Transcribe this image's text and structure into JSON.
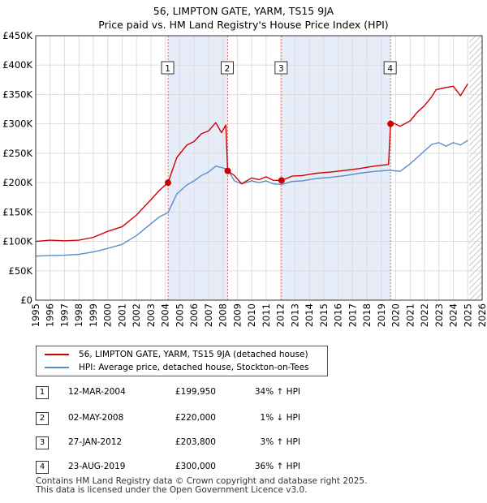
{
  "title_line1": "56, LIMPTON GATE, YARM, TS15 9JA",
  "title_line2": "Price paid vs. HM Land Registry's House Price Index (HPI)",
  "legend": {
    "property": "56, LIMPTON GATE, YARM, TS15 9JA (detached house)",
    "hpi": "HPI: Average price, detached house, Stockton-on-Tees"
  },
  "colors": {
    "property": "#cc0000",
    "hpi": "#5b8ec9",
    "shade": "#e6ecf8",
    "grid": "#dddddd",
    "vline": "#e06666"
  },
  "transactions": [
    {
      "num": "1",
      "date": "12-MAR-2004",
      "price": "£199,950",
      "hpi": "34% ↑ HPI",
      "year": 2004.19,
      "value": 199950
    },
    {
      "num": "2",
      "date": "02-MAY-2008",
      "price": "£220,000",
      "hpi": "1% ↓ HPI",
      "year": 2008.33,
      "value": 220000
    },
    {
      "num": "3",
      "date": "27-JAN-2012",
      "price": "£203,800",
      "hpi": "3% ↑ HPI",
      "year": 2012.07,
      "value": 203800
    },
    {
      "num": "4",
      "date": "23-AUG-2019",
      "price": "£300,000",
      "hpi": "36% ↑ HPI",
      "year": 2019.64,
      "value": 300000
    }
  ],
  "footer": {
    "line1": "Contains HM Land Registry data © Crown copyright and database right 2025.",
    "line2": "This data is licensed under the Open Government Licence v3.0."
  },
  "chart_data": {
    "type": "line",
    "xlim": [
      1995,
      2026
    ],
    "ylim": [
      0,
      450000
    ],
    "y_ticks": [
      {
        "value": 0,
        "label": "£0"
      },
      {
        "value": 50000,
        "label": "£50K"
      },
      {
        "value": 100000,
        "label": "£100K"
      },
      {
        "value": 150000,
        "label": "£150K"
      },
      {
        "value": 200000,
        "label": "£200K"
      },
      {
        "value": 250000,
        "label": "£250K"
      },
      {
        "value": 300000,
        "label": "£300K"
      },
      {
        "value": 350000,
        "label": "£350K"
      },
      {
        "value": 400000,
        "label": "£400K"
      },
      {
        "value": 450000,
        "label": "£450K"
      }
    ],
    "x_ticks": [
      "1995",
      "1996",
      "1997",
      "1998",
      "1999",
      "2000",
      "2001",
      "2002",
      "2003",
      "2004",
      "2005",
      "2006",
      "2007",
      "2008",
      "2009",
      "2010",
      "2011",
      "2012",
      "2013",
      "2014",
      "2015",
      "2016",
      "2017",
      "2018",
      "2019",
      "2020",
      "2021",
      "2022",
      "2023",
      "2024",
      "2025",
      "2026"
    ],
    "shaded_spans": [
      [
        2004.19,
        2008.33
      ],
      [
        2012.07,
        2019.64
      ]
    ],
    "hatch_from": 2025.1,
    "series": [
      {
        "name": "56, LIMPTON GATE, YARM, TS15 9JA (detached house)",
        "x": [
          1995,
          1996,
          1997,
          1998,
          1999,
          2000,
          2001,
          2002,
          2003,
          2003.6,
          2004.19,
          2004.8,
          2005.5,
          2006,
          2006.5,
          2007,
          2007.5,
          2007.9,
          2008.2,
          2008.33,
          2008.8,
          2009.3,
          2010,
          2010.5,
          2011,
          2011.5,
          2012.07,
          2012.8,
          2013.5,
          2014.5,
          2015.5,
          2016.5,
          2017.5,
          2018.5,
          2019.5,
          2019.64,
          2019.7,
          2020.3,
          2021,
          2021.5,
          2022,
          2022.5,
          2022.8,
          2023.5,
          2024,
          2024.5,
          2025.0
        ],
        "values": [
          100000,
          102000,
          101000,
          102000,
          107000,
          117000,
          125000,
          145000,
          171000,
          187000,
          199950,
          243000,
          264000,
          270000,
          283000,
          288000,
          302000,
          285000,
          298000,
          220000,
          212000,
          198000,
          208000,
          205000,
          210000,
          204000,
          203800,
          211000,
          212000,
          216000,
          218000,
          221000,
          224000,
          228000,
          231000,
          300000,
          303000,
          296000,
          305000,
          320000,
          331000,
          346000,
          358000,
          362000,
          364000,
          348000,
          368000
        ]
      },
      {
        "name": "HPI: Average price, detached house, Stockton-on-Tees",
        "x": [
          1995,
          1996,
          1997,
          1998,
          1999,
          2000,
          2001,
          2002,
          2003,
          2003.6,
          2004.19,
          2004.8,
          2005.5,
          2006,
          2006.5,
          2007,
          2007.5,
          2008,
          2008.33,
          2008.8,
          2009.3,
          2010,
          2010.5,
          2011,
          2011.5,
          2012.07,
          2012.8,
          2013.5,
          2014.5,
          2015.5,
          2016.5,
          2017.5,
          2018.5,
          2019.5,
          2019.64,
          2020.3,
          2021,
          2021.5,
          2022,
          2022.5,
          2023,
          2023.5,
          2024,
          2024.5,
          2025.0
        ],
        "values": [
          75000,
          76000,
          76500,
          78000,
          82000,
          88000,
          95000,
          110000,
          130000,
          142000,
          149000,
          181000,
          196000,
          203000,
          212000,
          218000,
          228000,
          225000,
          222000,
          203000,
          198000,
          203000,
          200000,
          203000,
          198000,
          197000,
          202000,
          203000,
          207000,
          209000,
          212000,
          216000,
          219000,
          221000,
          221000,
          219000,
          232000,
          243000,
          254000,
          265000,
          268000,
          262000,
          268000,
          264000,
          272000
        ]
      }
    ]
  }
}
